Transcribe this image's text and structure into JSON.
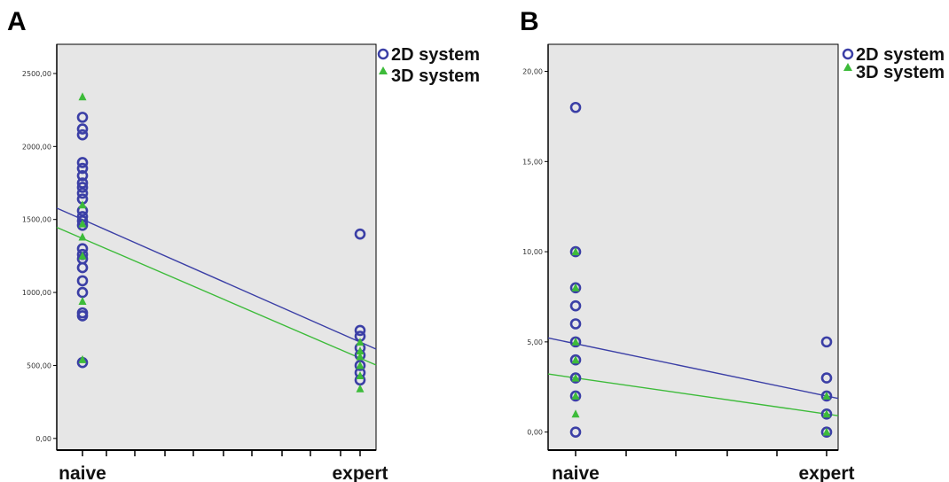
{
  "colors": {
    "series_2d": "#3b3fa6",
    "series_3d": "#3dbb3a",
    "plot_background": "#e6e6e6",
    "axis": "#000000"
  },
  "panels": [
    {
      "letter": "A",
      "legend": [
        "2D system",
        "3D system"
      ]
    },
    {
      "letter": "B",
      "legend": [
        "2D system",
        "3D system"
      ]
    }
  ],
  "chart_data": [
    {
      "type": "scatter",
      "title": "",
      "xlabel": "",
      "ylabel": "",
      "categories": [
        "naive",
        "expert"
      ],
      "yticks": [
        "0,00",
        "500,00",
        "1000,00",
        "1500,00",
        "2000,00",
        "2500,00"
      ],
      "ylim": [
        -80,
        2700
      ],
      "grid": false,
      "legend_position": "top-right",
      "series": [
        {
          "name": "2D system",
          "marker": "circle",
          "points": [
            {
              "x": "naive",
              "y": 2200
            },
            {
              "x": "naive",
              "y": 2120
            },
            {
              "x": "naive",
              "y": 2080
            },
            {
              "x": "naive",
              "y": 1890
            },
            {
              "x": "naive",
              "y": 1850
            },
            {
              "x": "naive",
              "y": 1800
            },
            {
              "x": "naive",
              "y": 1750
            },
            {
              "x": "naive",
              "y": 1720
            },
            {
              "x": "naive",
              "y": 1680
            },
            {
              "x": "naive",
              "y": 1640
            },
            {
              "x": "naive",
              "y": 1560
            },
            {
              "x": "naive",
              "y": 1520
            },
            {
              "x": "naive",
              "y": 1490
            },
            {
              "x": "naive",
              "y": 1460
            },
            {
              "x": "naive",
              "y": 1300
            },
            {
              "x": "naive",
              "y": 1260
            },
            {
              "x": "naive",
              "y": 1230
            },
            {
              "x": "naive",
              "y": 1170
            },
            {
              "x": "naive",
              "y": 1080
            },
            {
              "x": "naive",
              "y": 1000
            },
            {
              "x": "naive",
              "y": 860
            },
            {
              "x": "naive",
              "y": 840
            },
            {
              "x": "naive",
              "y": 520
            },
            {
              "x": "expert",
              "y": 1400
            },
            {
              "x": "expert",
              "y": 740
            },
            {
              "x": "expert",
              "y": 700
            },
            {
              "x": "expert",
              "y": 620
            },
            {
              "x": "expert",
              "y": 570
            },
            {
              "x": "expert",
              "y": 500
            },
            {
              "x": "expert",
              "y": 450
            },
            {
              "x": "expert",
              "y": 400
            }
          ],
          "fit_line": {
            "y_at_naive": 1500,
            "y_at_expert": 660
          }
        },
        {
          "name": "3D system",
          "marker": "triangle",
          "points": [
            {
              "x": "naive",
              "y": 2340
            },
            {
              "x": "naive",
              "y": 1600
            },
            {
              "x": "naive",
              "y": 1470
            },
            {
              "x": "naive",
              "y": 1380
            },
            {
              "x": "naive",
              "y": 1250
            },
            {
              "x": "naive",
              "y": 940
            },
            {
              "x": "naive",
              "y": 540
            },
            {
              "x": "expert",
              "y": 660
            },
            {
              "x": "expert",
              "y": 600
            },
            {
              "x": "expert",
              "y": 560
            },
            {
              "x": "expert",
              "y": 500
            },
            {
              "x": "expert",
              "y": 430
            },
            {
              "x": "expert",
              "y": 340
            }
          ],
          "fit_line": {
            "y_at_naive": 1370,
            "y_at_expert": 550
          }
        }
      ]
    },
    {
      "type": "scatter",
      "title": "",
      "xlabel": "",
      "ylabel": "",
      "categories": [
        "naive",
        "expert"
      ],
      "yticks": [
        "0,00",
        "5,00",
        "10,00",
        "15,00",
        "20,00"
      ],
      "ylim": [
        -1,
        21.5
      ],
      "grid": false,
      "legend_position": "top-right",
      "series": [
        {
          "name": "2D system",
          "marker": "circle",
          "points": [
            {
              "x": "naive",
              "y": 18
            },
            {
              "x": "naive",
              "y": 10
            },
            {
              "x": "naive",
              "y": 8
            },
            {
              "x": "naive",
              "y": 7
            },
            {
              "x": "naive",
              "y": 6
            },
            {
              "x": "naive",
              "y": 5
            },
            {
              "x": "naive",
              "y": 4
            },
            {
              "x": "naive",
              "y": 3
            },
            {
              "x": "naive",
              "y": 2
            },
            {
              "x": "naive",
              "y": 0
            },
            {
              "x": "expert",
              "y": 5
            },
            {
              "x": "expert",
              "y": 3
            },
            {
              "x": "expert",
              "y": 2
            },
            {
              "x": "expert",
              "y": 1
            },
            {
              "x": "expert",
              "y": 0
            }
          ],
          "fit_line": {
            "y_at_naive": 4.9,
            "y_at_expert": 2.0
          }
        },
        {
          "name": "3D system",
          "marker": "triangle",
          "points": [
            {
              "x": "naive",
              "y": 10
            },
            {
              "x": "naive",
              "y": 8
            },
            {
              "x": "naive",
              "y": 5
            },
            {
              "x": "naive",
              "y": 4
            },
            {
              "x": "naive",
              "y": 3
            },
            {
              "x": "naive",
              "y": 2
            },
            {
              "x": "naive",
              "y": 1
            },
            {
              "x": "expert",
              "y": 2
            },
            {
              "x": "expert",
              "y": 1
            },
            {
              "x": "expert",
              "y": 0
            }
          ],
          "fit_line": {
            "y_at_naive": 3.0,
            "y_at_expert": 1.0
          }
        }
      ]
    }
  ]
}
